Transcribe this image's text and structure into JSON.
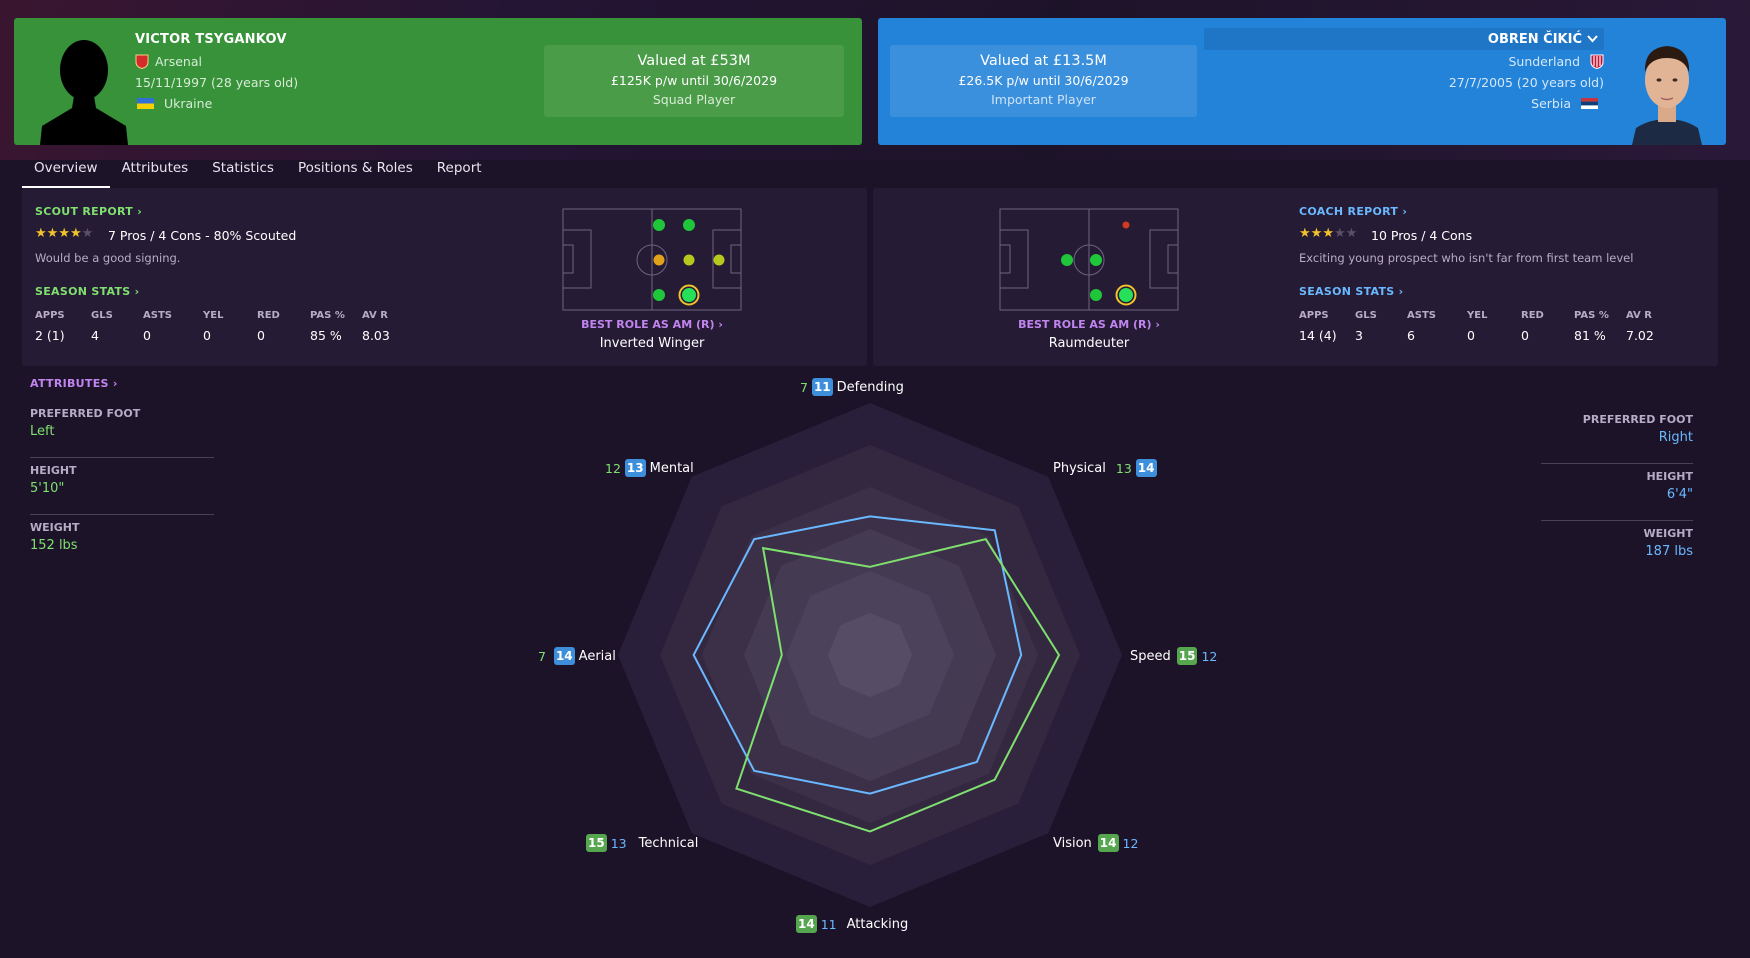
{
  "player_a": {
    "name": "VICTOR TSYGANKOV",
    "club": "Arsenal",
    "dob": "15/11/1997 (28 years old)",
    "nationality": "Ukraine",
    "value": "Valued at £53M",
    "wage": "£125K p/w until 30/6/2029",
    "status": "Squad Player"
  },
  "player_b": {
    "name": "OBREN ČIKIĆ",
    "club": "Sunderland",
    "dob": "27/7/2005 (20 years old)",
    "nationality": "Serbia",
    "value": "Valued at £13.5M",
    "wage": "£26.5K p/w until 30/6/2029",
    "status": "Important Player"
  },
  "tabs": [
    "Overview",
    "Attributes",
    "Statistics",
    "Positions & Roles",
    "Report"
  ],
  "scout": {
    "title": "SCOUT REPORT",
    "stars": 4,
    "text": "7 Pros / 4 Cons - 80% Scouted",
    "summary": "Would be a good signing."
  },
  "coach": {
    "title": "COACH REPORT",
    "stars": 3,
    "text": "10 Pros / 4 Cons",
    "summary": "Exciting young prospect who isn't far from first team level"
  },
  "season_stats": {
    "title": "SEASON STATS",
    "headers": [
      "APPS",
      "GLS",
      "ASTS",
      "YEL",
      "RED",
      "PAS %",
      "AV R"
    ],
    "a": [
      "2 (1)",
      "4",
      "0",
      "0",
      "0",
      "85 %",
      "8.03"
    ],
    "b": [
      "14 (4)",
      "3",
      "6",
      "0",
      "0",
      "81 %",
      "7.02"
    ]
  },
  "roles": {
    "title": "BEST ROLE AS AM (R)",
    "a": "Inverted Winger",
    "b": "Raumdeuter"
  },
  "attributes_link": "ATTRIBUTES",
  "physical": {
    "foot_label": "PREFERRED FOOT",
    "height_label": "HEIGHT",
    "weight_label": "WEIGHT",
    "a": {
      "foot": "Left",
      "height": "5'10\"",
      "weight": "152 lbs"
    },
    "b": {
      "foot": "Right",
      "height": "6'4\"",
      "weight": "187 lbs"
    }
  },
  "radar": {
    "axes": [
      {
        "name": "Defending",
        "a": 7,
        "b": 11
      },
      {
        "name": "Physical",
        "a": 13,
        "b": 14
      },
      {
        "name": "Speed",
        "a": 15,
        "b": 12
      },
      {
        "name": "Vision",
        "a": 14,
        "b": 12
      },
      {
        "name": "Attacking",
        "a": 14,
        "b": 11
      },
      {
        "name": "Technical",
        "a": 15,
        "b": 13
      },
      {
        "name": "Aerial",
        "a": 7,
        "b": 14
      },
      {
        "name": "Mental",
        "a": 12,
        "b": 13
      }
    ],
    "max": 20,
    "colors": {
      "a": "#7fe06f",
      "b": "#6ab8ff"
    }
  }
}
